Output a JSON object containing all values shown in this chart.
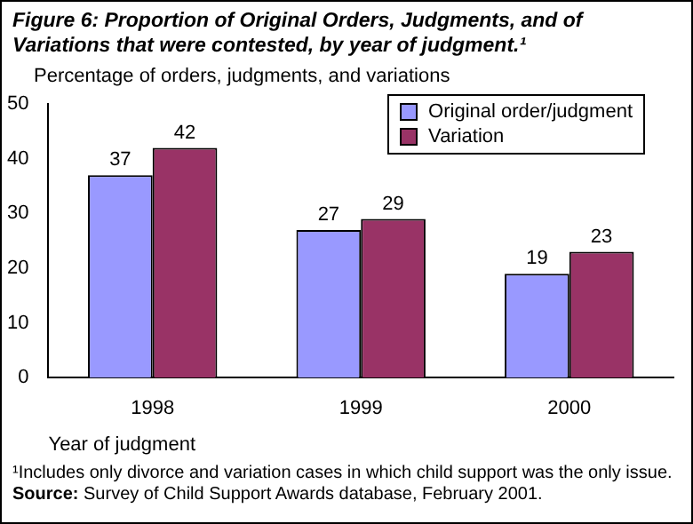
{
  "chart_data": {
    "type": "bar",
    "title": "Figure 6: Proportion of Original Orders, Judgments, and of Variations that were contested, by year of judgment.¹",
    "ylabel": "Percentage of orders, judgments, and variations",
    "xlabel": "Year of judgment",
    "categories": [
      "1998",
      "1999",
      "2000"
    ],
    "series": [
      {
        "name": "Original order/judgment",
        "color": "#9999ff",
        "values": [
          37,
          27,
          19
        ]
      },
      {
        "name": "Variation",
        "color": "#993366",
        "values": [
          42,
          29,
          23
        ]
      }
    ],
    "ylim": [
      0,
      50
    ],
    "yticks": [
      0,
      10,
      20,
      30,
      40,
      50
    ],
    "grid": false,
    "legend": "top right",
    "data_labels": true,
    "annotations": [
      "¹Includes only divorce and variation cases in which child support was the only issue.",
      "Source: Survey of Child Support Awards database, February 2001."
    ]
  }
}
